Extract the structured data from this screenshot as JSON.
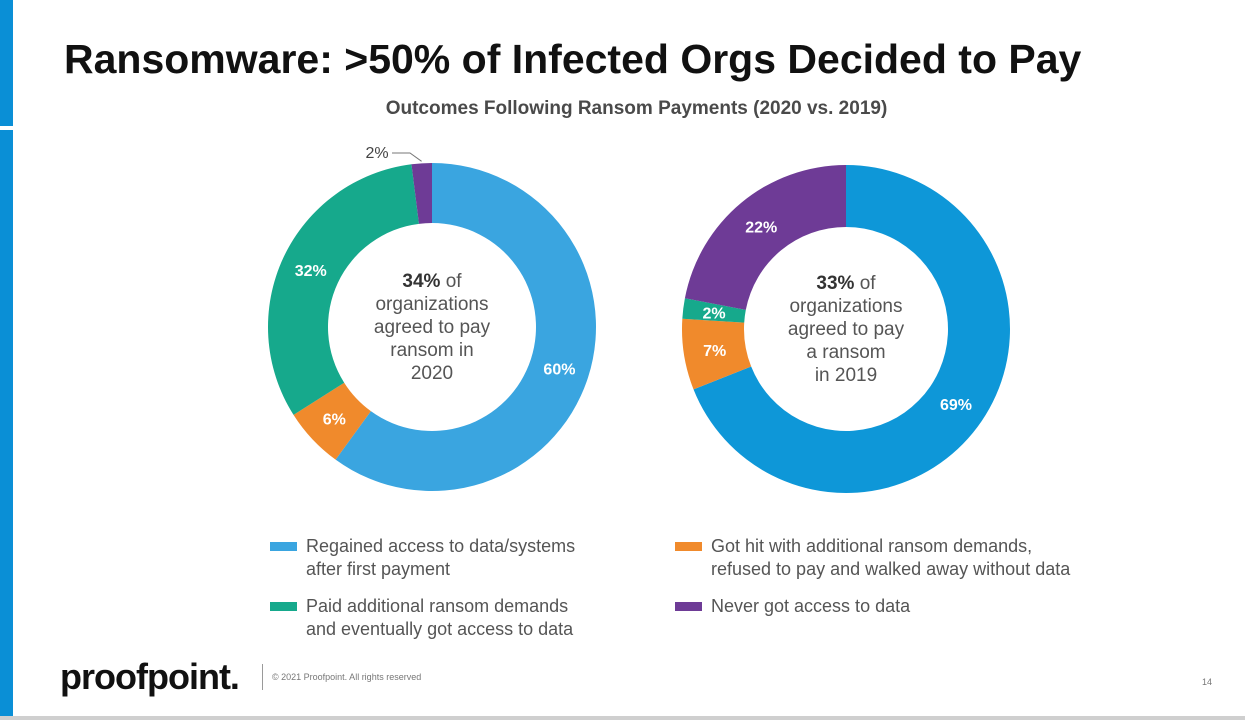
{
  "slide": {
    "title": "Ransomware: >50% of Infected Orgs Decided to Pay",
    "footer": {
      "logo": "proofpoint.",
      "copyright": "© 2021 Proofpoint. All rights reserved",
      "page_number": "14"
    }
  },
  "colors": {
    "accent_bar": "#0a8fd6"
  },
  "chart_data": {
    "type": "pie",
    "variant": "donut",
    "title": "Outcomes Following Ransom Payments (2020 vs. 2019)",
    "categories": [
      "Regained access to data/systems after first payment",
      "Paid additional ransom demands and eventually got access to data",
      "Got hit with additional ransom demands, refused to pay and walked away without data",
      "Never got access to data"
    ],
    "legend": [
      {
        "label": "Regained access to data/systems\nafter first payment",
        "color": "#3aa5e0"
      },
      {
        "label": "Paid additional ransom demands\nand eventually got access to data",
        "color": "#16a98c"
      },
      {
        "label": "Got hit with additional ransom demands,\nrefused to pay and walked away without data",
        "color": "#f08a2c"
      },
      {
        "label": "Never got access to data",
        "color": "#6e3b96"
      }
    ],
    "legend_placement": "bottom",
    "charts": [
      {
        "center_lines": [
          "34% of",
          "organizations",
          "agreed to pay",
          "ransom in",
          "2020"
        ],
        "center_bold": "34%",
        "slices": [
          {
            "category": 0,
            "value": 60,
            "label": "60%",
            "color": "#3aa5e0"
          },
          {
            "category": 2,
            "value": 6,
            "label": "6%",
            "color": "#f08a2c"
          },
          {
            "category": 1,
            "value": 32,
            "label": "32%",
            "color": "#16a98c"
          },
          {
            "category": 3,
            "value": 2,
            "label": "2%",
            "color": "#6e3b96"
          }
        ]
      },
      {
        "center_lines": [
          "33% of",
          "organizations",
          "agreed to pay",
          "a ransom",
          "in 2019"
        ],
        "center_bold": "33%",
        "slices": [
          {
            "category": 0,
            "value": 69,
            "label": "69%",
            "color": "#0e97d8"
          },
          {
            "category": 2,
            "value": 7,
            "label": "7%",
            "color": "#f08a2c"
          },
          {
            "category": 1,
            "value": 2,
            "label": "2%",
            "color": "#16a98c"
          },
          {
            "category": 3,
            "value": 22,
            "label": "22%",
            "color": "#6e3b96"
          }
        ]
      }
    ]
  }
}
